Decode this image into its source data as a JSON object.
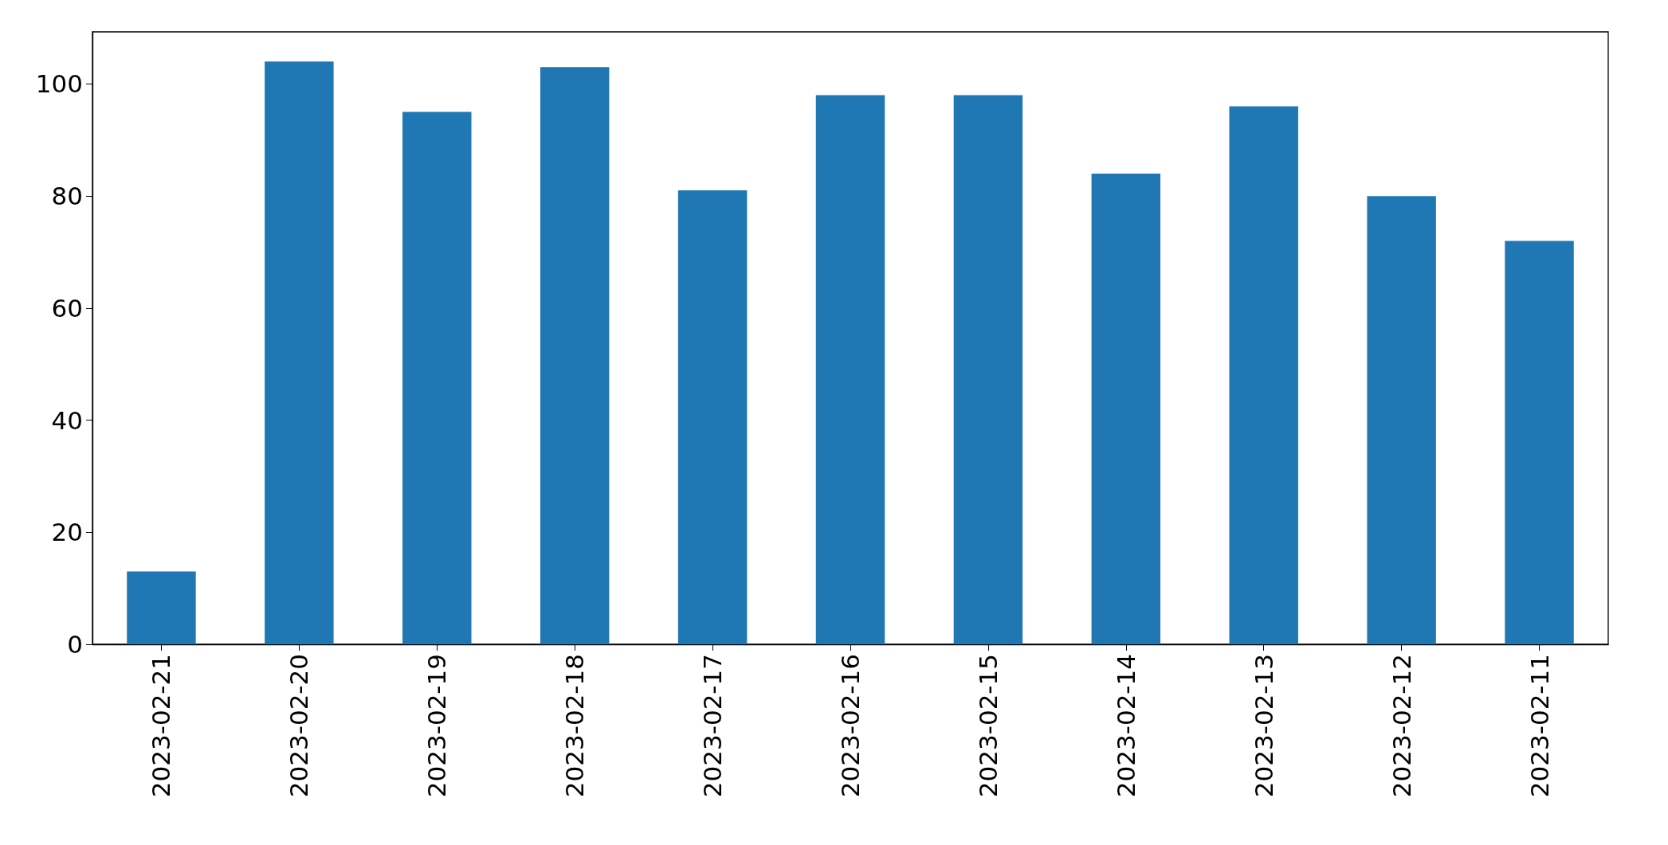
{
  "chart_data": {
    "type": "bar",
    "categories": [
      "2023-02-21",
      "2023-02-20",
      "2023-02-19",
      "2023-02-18",
      "2023-02-17",
      "2023-02-16",
      "2023-02-15",
      "2023-02-14",
      "2023-02-13",
      "2023-02-12",
      "2023-02-11"
    ],
    "values": [
      13,
      104,
      95,
      103,
      81,
      98,
      98,
      84,
      96,
      80,
      72
    ],
    "color": "#1f77b4",
    "ylim": [
      0,
      109.3
    ],
    "yticks": [
      0,
      20,
      40,
      60,
      80,
      100
    ]
  }
}
